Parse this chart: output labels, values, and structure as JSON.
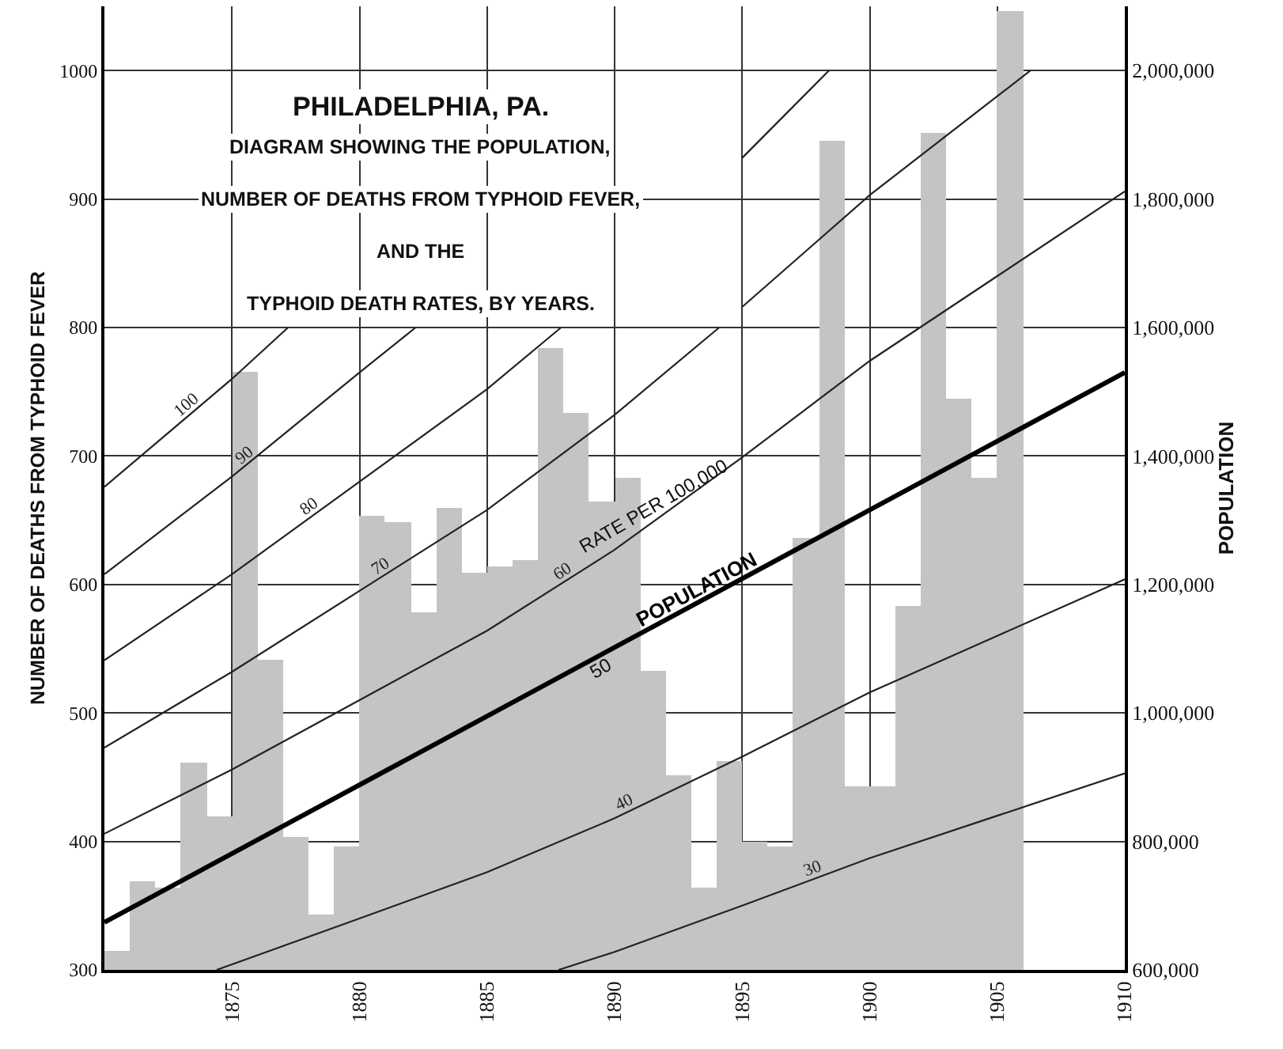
{
  "chart_data": {
    "type": "bar",
    "title": "PHILADELPHIA, PA.",
    "subtitle": "DIAGRAM SHOWING THE POPULATION,\nNUMBER OF DEATHS FROM TYPHOID FEVER,\nAND THE\nTYPHOID DEATH RATES, BY YEARS.",
    "ylabel": "NUMBER OF DEATHS FROM TYPHOID FEVER",
    "y2label": "POPULATION",
    "xlim": [
      1870,
      1910
    ],
    "xticks": [
      1875,
      1880,
      1885,
      1890,
      1895,
      1900,
      1905,
      1910
    ],
    "ylim": [
      300,
      1050
    ],
    "yticks": [
      300,
      400,
      500,
      600,
      700,
      800,
      900,
      1000
    ],
    "y2lim": [
      600000,
      2100000
    ],
    "y2ticks": [
      {
        "value": 600000,
        "label": "600,000"
      },
      {
        "value": 800000,
        "label": "800,000"
      },
      {
        "value": 1000000,
        "label": "1,000,000"
      },
      {
        "value": 1200000,
        "label": "1,200,000"
      },
      {
        "value": 1400000,
        "label": "1,400,000"
      },
      {
        "value": 1600000,
        "label": "1,600,000"
      },
      {
        "value": 1800000,
        "label": "1,800,000"
      },
      {
        "value": 2000000,
        "label": "2,000,000"
      }
    ],
    "grid": true,
    "series": [
      {
        "color": "#c4c4c4",
        "x": [
          1870.5,
          1871.5,
          1872.5,
          1873.5,
          1874.5,
          1875.5,
          1876.5,
          1877.5,
          1878.5,
          1879.5,
          1880.5,
          1881.5,
          1882.5,
          1883.5,
          1884.5,
          1885.5,
          1886.5,
          1887.5,
          1888.5,
          1889.5,
          1890.5,
          1891.5,
          1892.5,
          1893.5,
          1894.5,
          1895.5,
          1896.5,
          1897.5,
          1898.5,
          1899.5,
          1900.5,
          1901.5,
          1902.5,
          1903.5,
          1904.5,
          1905.5
        ],
        "values": [
          315,
          369,
          364,
          461,
          420,
          765,
          542,
          404,
          343,
          396,
          654,
          648,
          578,
          660,
          609,
          614,
          619,
          784,
          734,
          665,
          683,
          533,
          451,
          364,
          463,
          400,
          396,
          636,
          945,
          443,
          443,
          583,
          951,
          745,
          683,
          1046
        ]
      },
      {
        "type": "line",
        "name": "POPULATION",
        "axis": "y2",
        "color": "#000000",
        "x": [
          1870,
          1910
        ],
        "values": [
          674000,
          1530000
        ]
      },
      {
        "type": "line",
        "name": "100",
        "color": "#222222",
        "x": [
          1870,
          1875,
          1877.2
        ],
        "values": [
          676,
          760,
          800
        ]
      },
      {
        "type": "line",
        "name": "90",
        "color": "#222222",
        "x": [
          1870,
          1875,
          1880,
          1882.2
        ],
        "values": [
          608,
          684,
          765,
          800
        ]
      },
      {
        "type": "line",
        "name": "80",
        "color": "#222222",
        "x": [
          1870,
          1875,
          1880,
          1885,
          1887.9,
          1891,
          1895,
          1898.4
        ],
        "values": [
          541,
          608,
          680,
          752,
          800,
          null,
          932,
          1000
        ]
      },
      {
        "type": "line",
        "name": "70",
        "color": "#222222",
        "x": [
          1870,
          1875,
          1880,
          1885,
          1890,
          1894.1,
          1894.5,
          1895,
          1900,
          1905,
          1906.3
        ],
        "values": [
          473,
          532,
          595,
          658,
          732,
          800,
          null,
          816,
          903,
          980,
          1000
        ]
      },
      {
        "type": "line",
        "name": "60",
        "color": "#222222",
        "x": [
          1870,
          1875,
          1880,
          1885,
          1890,
          1895,
          1900,
          1905,
          1910
        ],
        "values": [
          406,
          456,
          510,
          564,
          627,
          699,
          774,
          840,
          906
        ]
      },
      {
        "type": "line",
        "name": "40",
        "color": "#222222",
        "x": [
          1874.4,
          1880,
          1885,
          1890,
          1895,
          1900,
          1905,
          1910
        ],
        "values": [
          300,
          340,
          376,
          418,
          466,
          516,
          560,
          604
        ]
      },
      {
        "type": "line",
        "name": "30",
        "color": "#222222",
        "x": [
          1887.8,
          1890,
          1895,
          1900,
          1905,
          1910
        ],
        "values": [
          300,
          314,
          350,
          387,
          420,
          453
        ]
      }
    ],
    "annotations": [
      {
        "text": "RATE PER 100,000",
        "x": 1891.5,
        "y": 649
      },
      {
        "text": "50",
        "x": 1889.5,
        "y": 546
      }
    ]
  }
}
